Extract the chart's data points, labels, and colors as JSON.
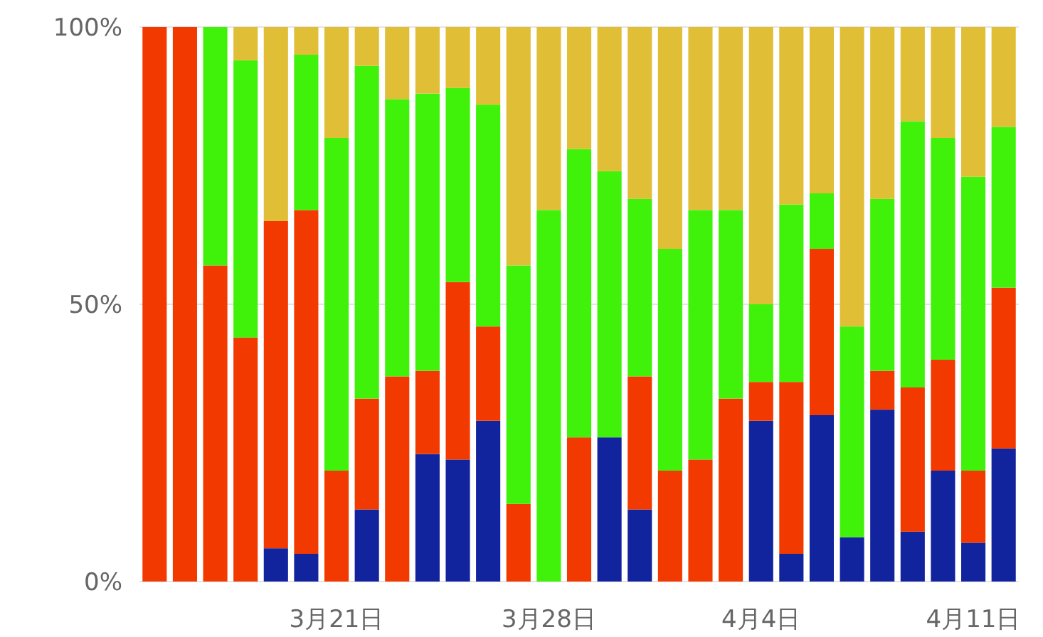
{
  "chart_data": {
    "type": "bar",
    "stacked": true,
    "categories": [
      null,
      null,
      null,
      null,
      null,
      null,
      "3月21日",
      null,
      null,
      null,
      null,
      null,
      null,
      "3月28日",
      null,
      null,
      null,
      null,
      null,
      null,
      "4月4日",
      null,
      null,
      null,
      null,
      null,
      null,
      "4月11日",
      null
    ],
    "series": [
      {
        "color": "#12239e",
        "values": [
          0,
          0,
          0,
          0,
          6,
          5,
          0,
          13,
          0,
          23,
          22,
          29,
          0,
          0,
          0,
          26,
          13,
          0,
          0,
          0,
          29,
          5,
          30,
          8,
          31,
          9,
          20,
          7,
          24
        ]
      },
      {
        "color": "#f23a00",
        "values": [
          100,
          100,
          57,
          44,
          59,
          62,
          20,
          20,
          37,
          15,
          32,
          17,
          14,
          0,
          26,
          0,
          24,
          20,
          22,
          33,
          7,
          31,
          30,
          0,
          7,
          26,
          20,
          13,
          29
        ]
      },
      {
        "color": "#40f20a",
        "values": [
          0,
          0,
          43,
          50,
          0,
          28,
          60,
          60,
          50,
          50,
          35,
          40,
          43,
          67,
          52,
          48,
          32,
          40,
          45,
          34,
          14,
          32,
          10,
          38,
          31,
          48,
          40,
          53,
          29
        ]
      },
      {
        "color": "#e0be36",
        "values": [
          0,
          0,
          0,
          6,
          35,
          5,
          20,
          7,
          13,
          12,
          11,
          14,
          43,
          33,
          22,
          26,
          31,
          40,
          33,
          33,
          50,
          32,
          30,
          54,
          31,
          17,
          20,
          27,
          18
        ]
      }
    ],
    "ylim": [
      0,
      100
    ],
    "yticks": [
      {
        "value": 0,
        "label": "0%"
      },
      {
        "value": 50,
        "label": "50%"
      },
      {
        "value": 100,
        "label": "100%"
      }
    ],
    "grid": "y"
  }
}
